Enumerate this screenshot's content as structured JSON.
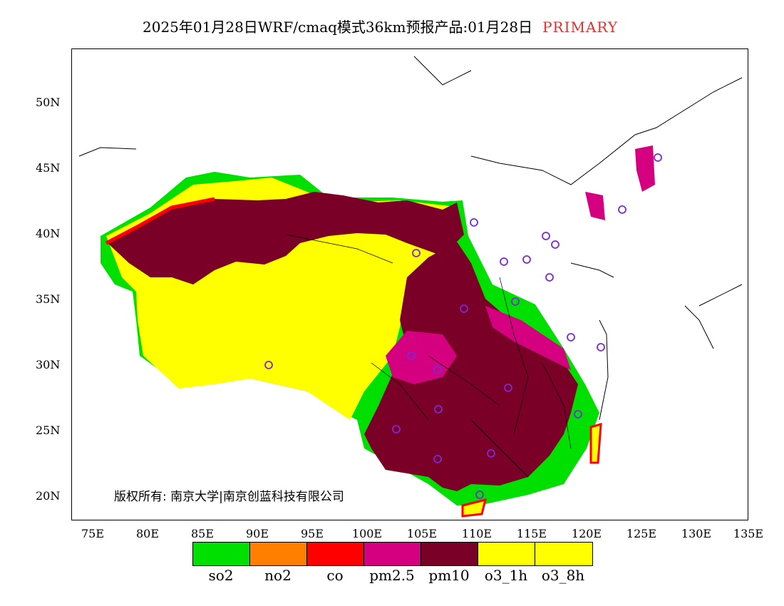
{
  "header": {
    "title": "2025年01月28日WRF/cmaq模式36km预报产品:01月28日",
    "tag": "PRIMARY"
  },
  "map": {
    "lat_labels": [
      "50N",
      "45N",
      "40N",
      "35N",
      "30N",
      "25N",
      "20N"
    ],
    "lon_labels": [
      "75E",
      "80E",
      "85E",
      "90E",
      "95E",
      "100E",
      "105E",
      "110E",
      "115E",
      "120E",
      "125E",
      "130E",
      "135E"
    ],
    "copyright": "版权所有: 南京大学|南京创蓝科技有限公司"
  },
  "legend": {
    "items": [
      {
        "label": "so2",
        "color": "#00e000"
      },
      {
        "label": "no2",
        "color": "#ff8000"
      },
      {
        "label": "co",
        "color": "#ff0000"
      },
      {
        "label": "pm2.5",
        "color": "#d40080"
      },
      {
        "label": "pm10",
        "color": "#7a0028"
      },
      {
        "label": "o3_1h",
        "color": "#ffff00"
      },
      {
        "label": "o3_8h",
        "color": "#ffff00"
      }
    ]
  },
  "colors": {
    "tag": "#e03030",
    "station_marker": "#7a2ad8"
  }
}
